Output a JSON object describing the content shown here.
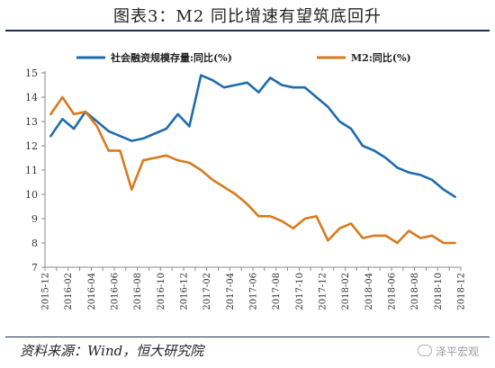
{
  "title": "图表3：M2 同比增速有望筑底回升",
  "source": "资料来源：Wind，恒大研究院",
  "watermark": "泽平宏观",
  "chart_data": {
    "type": "line",
    "title": "图表3：M2 同比增速有望筑底回升",
    "xlabel": "",
    "ylabel": "",
    "ylim": [
      7,
      15
    ],
    "yticks": [
      7,
      8,
      9,
      10,
      11,
      12,
      13,
      14,
      15
    ],
    "grid": false,
    "legend_position": "top",
    "x": [
      "2015-12",
      "2016-01",
      "2016-02",
      "2016-03",
      "2016-04",
      "2016-05",
      "2016-06",
      "2016-07",
      "2016-08",
      "2016-09",
      "2016-10",
      "2016-11",
      "2016-12",
      "2017-01",
      "2017-02",
      "2017-03",
      "2017-04",
      "2017-05",
      "2017-06",
      "2017-07",
      "2017-08",
      "2017-09",
      "2017-10",
      "2017-11",
      "2017-12",
      "2018-01",
      "2018-02",
      "2018-03",
      "2018-04",
      "2018-05",
      "2018-06",
      "2018-07",
      "2018-08",
      "2018-09",
      "2018-10",
      "2018-11"
    ],
    "xtick_labels": [
      "2015-12",
      "2016-02",
      "2016-04",
      "2016-06",
      "2016-08",
      "2016-10",
      "2016-12",
      "2017-02",
      "2017-04",
      "2017-06",
      "2017-08",
      "2017-10",
      "2017-12",
      "2018-02",
      "2018-04",
      "2018-06",
      "2018-08",
      "2018-10",
      "2018-12"
    ],
    "series": [
      {
        "name": "社会融资规模存量:同比(%)",
        "color": "#1f6bb0",
        "values": [
          12.4,
          13.1,
          12.7,
          13.4,
          13.0,
          12.6,
          12.4,
          12.2,
          12.3,
          12.5,
          12.7,
          13.3,
          12.8,
          14.9,
          14.7,
          14.4,
          14.5,
          14.6,
          14.2,
          14.8,
          14.5,
          14.4,
          14.4,
          14.0,
          13.6,
          13.0,
          12.7,
          12.0,
          11.8,
          11.5,
          11.1,
          10.9,
          10.8,
          10.6,
          10.2,
          9.9
        ]
      },
      {
        "name": "M2:同比(%)",
        "color": "#d97a1e",
        "values": [
          13.3,
          14.0,
          13.3,
          13.4,
          12.8,
          11.8,
          11.8,
          10.2,
          11.4,
          11.5,
          11.6,
          11.4,
          11.3,
          11.0,
          10.6,
          10.3,
          10.0,
          9.6,
          9.1,
          9.1,
          8.9,
          8.6,
          9.0,
          9.1,
          8.1,
          8.6,
          8.8,
          8.2,
          8.3,
          8.3,
          8.0,
          8.5,
          8.2,
          8.3,
          8.0,
          8.0
        ]
      }
    ]
  }
}
